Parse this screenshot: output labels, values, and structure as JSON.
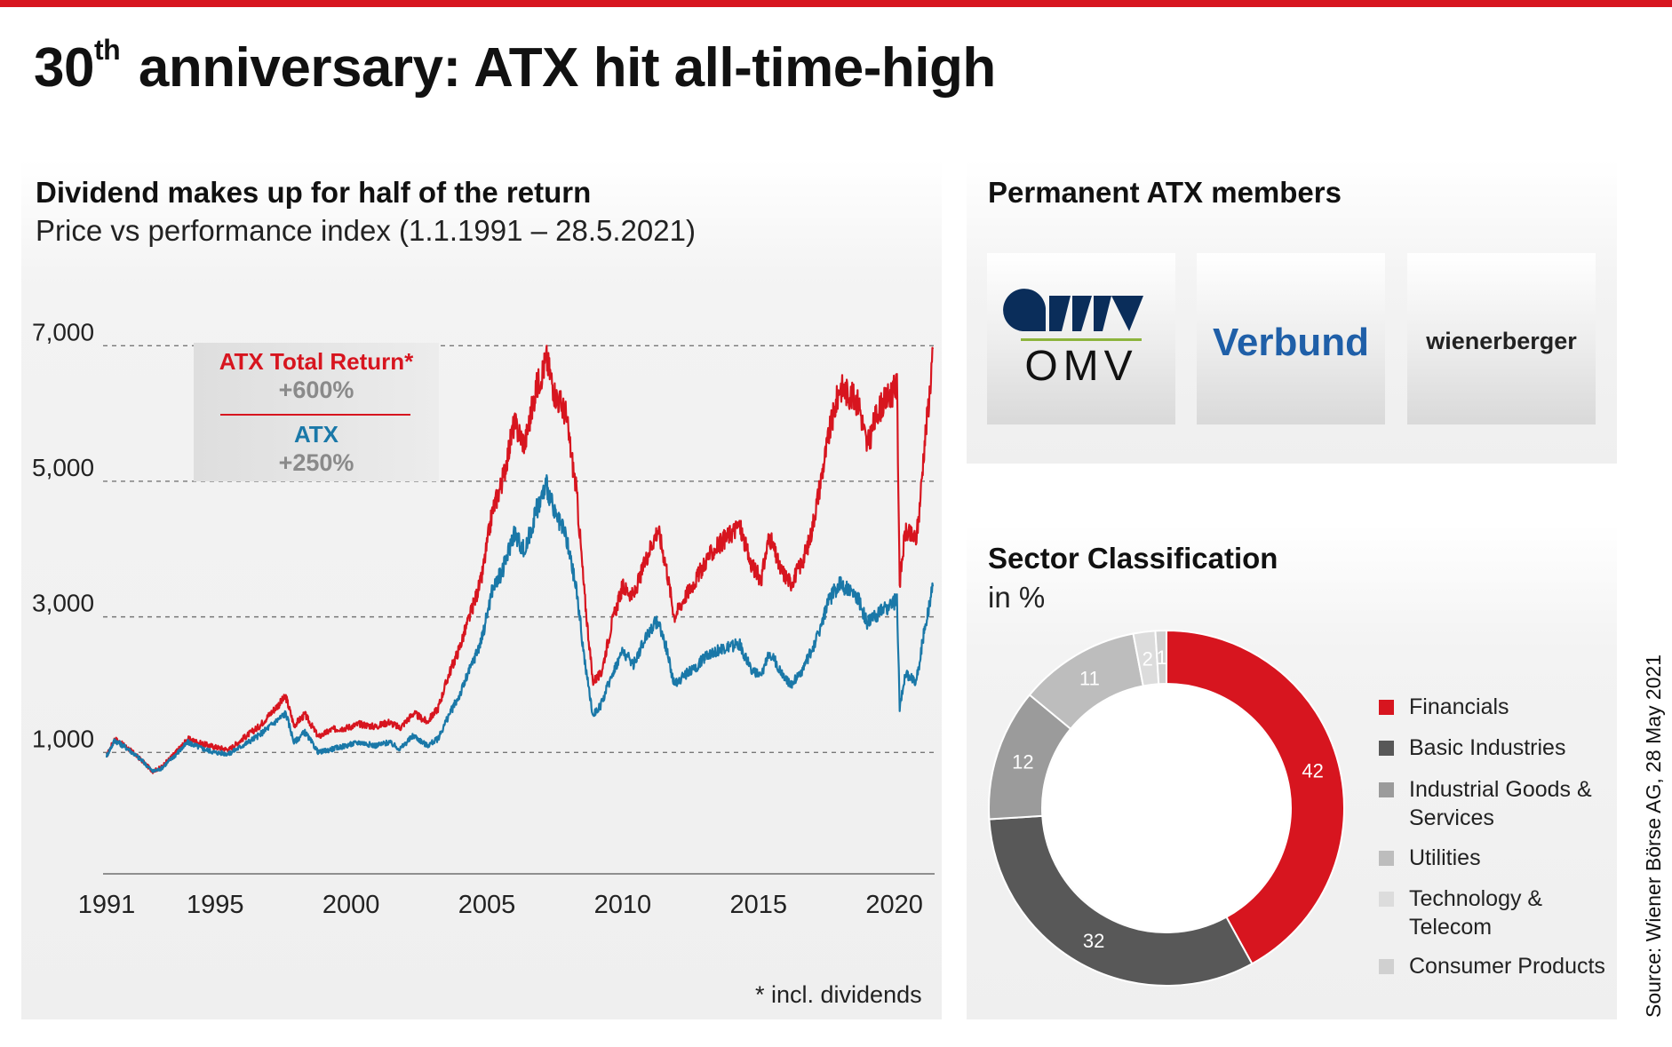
{
  "title": {
    "number": "30",
    "sup": "th",
    "rest": "anniversary: ATX hit all-time-high"
  },
  "line_panel": {
    "heading": "Dividend makes up for half of the return",
    "subheading": "Price vs performance index (1.1.1991 – 28.5.2021)",
    "footnote": "* incl. dividends",
    "annotation": {
      "a_label": "ATX Total Return*",
      "a_value": "+600%",
      "b_label": "ATX",
      "b_value": "+250%"
    }
  },
  "members_panel": {
    "heading": "Permanent ATX members",
    "logos": [
      {
        "name": "OMV",
        "icon": "omv-logo"
      },
      {
        "name": "Verbund",
        "icon": "verbund-logo"
      },
      {
        "name": "wienerberger",
        "icon": "wienerberger-logo"
      }
    ]
  },
  "sector_panel": {
    "heading": "Sector Classification",
    "subheading": "in %"
  },
  "source": "Source: Wiener Börse AG, 28 May 2021",
  "colors": {
    "tr": "#d7151f",
    "atx": "#1a78a8",
    "accent": "#d7151f"
  },
  "chart_data": [
    {
      "type": "line",
      "title": "Dividend makes up for half of the return",
      "subtitle": "Price vs performance index (1.1.1991 – 28.5.2021)",
      "xlim": [
        1991,
        2021.42
      ],
      "ylim": [
        -1000,
        7200
      ],
      "x_ticks": [
        1991,
        1995,
        2000,
        2005,
        2010,
        2015,
        2020
      ],
      "x_tick_labels": [
        "1991",
        "1995",
        "2000",
        "2005",
        "2010",
        "2015",
        "2020"
      ],
      "y_ticks": [
        1000,
        3000,
        5000,
        7000
      ],
      "y_tick_labels": [
        "1,000",
        "3,000",
        "5,000",
        "7,000"
      ],
      "grid": "horizontal dashed",
      "series": [
        {
          "name": "ATX Total Return*",
          "color": "#d7151f",
          "points": [
            [
              1991.0,
              950
            ],
            [
              1991.3,
              1200
            ],
            [
              1991.8,
              1060
            ],
            [
              1992.3,
              880
            ],
            [
              1992.7,
              720
            ],
            [
              1993.0,
              780
            ],
            [
              1993.5,
              980
            ],
            [
              1994.0,
              1200
            ],
            [
              1994.5,
              1130
            ],
            [
              1995.0,
              1080
            ],
            [
              1995.5,
              1040
            ],
            [
              1996.0,
              1200
            ],
            [
              1996.6,
              1380
            ],
            [
              1997.2,
              1650
            ],
            [
              1997.6,
              1820
            ],
            [
              1997.9,
              1400
            ],
            [
              1998.3,
              1560
            ],
            [
              1998.8,
              1230
            ],
            [
              1999.3,
              1340
            ],
            [
              1999.8,
              1360
            ],
            [
              2000.3,
              1420
            ],
            [
              2000.9,
              1380
            ],
            [
              2001.4,
              1450
            ],
            [
              2001.8,
              1360
            ],
            [
              2002.3,
              1580
            ],
            [
              2002.8,
              1450
            ],
            [
              2003.2,
              1650
            ],
            [
              2003.6,
              2150
            ],
            [
              2004.0,
              2550
            ],
            [
              2004.4,
              3050
            ],
            [
              2004.8,
              3550
            ],
            [
              2005.2,
              4550
            ],
            [
              2005.6,
              5050
            ],
            [
              2006.0,
              5850
            ],
            [
              2006.4,
              5550
            ],
            [
              2006.8,
              6350
            ],
            [
              2007.2,
              6800
            ],
            [
              2007.5,
              6300
            ],
            [
              2007.9,
              6000
            ],
            [
              2008.3,
              4850
            ],
            [
              2008.6,
              3300
            ],
            [
              2008.9,
              2050
            ],
            [
              2009.2,
              2150
            ],
            [
              2009.6,
              2900
            ],
            [
              2010.0,
              3450
            ],
            [
              2010.4,
              3300
            ],
            [
              2010.9,
              3900
            ],
            [
              2011.3,
              4300
            ],
            [
              2011.6,
              3750
            ],
            [
              2011.9,
              3000
            ],
            [
              2012.3,
              3300
            ],
            [
              2012.7,
              3550
            ],
            [
              2013.1,
              3850
            ],
            [
              2013.5,
              4050
            ],
            [
              2013.9,
              4200
            ],
            [
              2014.3,
              4350
            ],
            [
              2014.7,
              3800
            ],
            [
              2015.1,
              3550
            ],
            [
              2015.4,
              4200
            ],
            [
              2015.8,
              3700
            ],
            [
              2016.2,
              3500
            ],
            [
              2016.6,
              3800
            ],
            [
              2016.9,
              4150
            ],
            [
              2017.2,
              4800
            ],
            [
              2017.6,
              5700
            ],
            [
              2018.0,
              6400
            ],
            [
              2018.3,
              6300
            ],
            [
              2018.7,
              6150
            ],
            [
              2019.0,
              5500
            ],
            [
              2019.4,
              6050
            ],
            [
              2019.8,
              6250
            ],
            [
              2020.1,
              6400
            ],
            [
              2020.2,
              3500
            ],
            [
              2020.4,
              4250
            ],
            [
              2020.8,
              4150
            ],
            [
              2020.9,
              4450
            ],
            [
              2021.1,
              5500
            ],
            [
              2021.3,
              6300
            ],
            [
              2021.42,
              6950
            ]
          ]
        },
        {
          "name": "ATX",
          "color": "#1a78a8",
          "points": [
            [
              1991.0,
              950
            ],
            [
              1991.3,
              1180
            ],
            [
              1991.8,
              1050
            ],
            [
              1992.3,
              880
            ],
            [
              1992.7,
              720
            ],
            [
              1993.0,
              760
            ],
            [
              1993.5,
              950
            ],
            [
              1994.0,
              1150
            ],
            [
              1994.5,
              1060
            ],
            [
              1995.0,
              1000
            ],
            [
              1995.5,
              980
            ],
            [
              1996.0,
              1100
            ],
            [
              1996.6,
              1250
            ],
            [
              1997.2,
              1450
            ],
            [
              1997.6,
              1580
            ],
            [
              1997.9,
              1150
            ],
            [
              1998.3,
              1300
            ],
            [
              1998.8,
              1000
            ],
            [
              1999.3,
              1050
            ],
            [
              1999.8,
              1100
            ],
            [
              2000.3,
              1150
            ],
            [
              2000.9,
              1100
            ],
            [
              2001.4,
              1150
            ],
            [
              2001.8,
              1050
            ],
            [
              2002.3,
              1250
            ],
            [
              2002.8,
              1100
            ],
            [
              2003.2,
              1200
            ],
            [
              2003.6,
              1550
            ],
            [
              2004.0,
              1850
            ],
            [
              2004.4,
              2250
            ],
            [
              2004.8,
              2650
            ],
            [
              2005.2,
              3400
            ],
            [
              2005.6,
              3700
            ],
            [
              2006.0,
              4250
            ],
            [
              2006.4,
              3950
            ],
            [
              2006.8,
              4550
            ],
            [
              2007.2,
              4950
            ],
            [
              2007.5,
              4500
            ],
            [
              2007.9,
              4200
            ],
            [
              2008.3,
              3400
            ],
            [
              2008.6,
              2350
            ],
            [
              2008.9,
              1550
            ],
            [
              2009.2,
              1700
            ],
            [
              2009.6,
              2150
            ],
            [
              2010.0,
              2500
            ],
            [
              2010.4,
              2300
            ],
            [
              2010.9,
              2750
            ],
            [
              2011.3,
              2950
            ],
            [
              2011.6,
              2550
            ],
            [
              2011.9,
              2000
            ],
            [
              2012.3,
              2150
            ],
            [
              2012.7,
              2250
            ],
            [
              2013.1,
              2450
            ],
            [
              2013.5,
              2500
            ],
            [
              2013.9,
              2550
            ],
            [
              2014.3,
              2600
            ],
            [
              2014.7,
              2250
            ],
            [
              2015.1,
              2100
            ],
            [
              2015.4,
              2500
            ],
            [
              2015.8,
              2200
            ],
            [
              2016.2,
              2000
            ],
            [
              2016.6,
              2200
            ],
            [
              2016.9,
              2450
            ],
            [
              2017.2,
              2750
            ],
            [
              2017.6,
              3250
            ],
            [
              2018.0,
              3500
            ],
            [
              2018.3,
              3400
            ],
            [
              2018.7,
              3250
            ],
            [
              2019.0,
              2900
            ],
            [
              2019.4,
              3050
            ],
            [
              2019.8,
              3150
            ],
            [
              2020.1,
              3250
            ],
            [
              2020.2,
              1650
            ],
            [
              2020.4,
              2150
            ],
            [
              2020.8,
              2050
            ],
            [
              2020.9,
              2250
            ],
            [
              2021.1,
              2800
            ],
            [
              2021.3,
              3200
            ],
            [
              2021.42,
              3450
            ]
          ]
        }
      ]
    },
    {
      "type": "pie",
      "title": "Sector Classification",
      "subtitle": "in %",
      "donut": true,
      "slices": [
        {
          "label": "Financials",
          "value": 42,
          "color": "#d7151f"
        },
        {
          "label": "Basic Industries",
          "value": 32,
          "color": "#585858"
        },
        {
          "label": "Industrial Goods & Services",
          "label_lines": [
            "Industrial Goods &",
            "Services"
          ],
          "value": 12,
          "color": "#9b9b9b"
        },
        {
          "label": "Utilities",
          "value": 11,
          "color": "#bdbdbd"
        },
        {
          "label": "Technology & Telecom",
          "label_lines": [
            "Technology &",
            "Telecom"
          ],
          "value": 2,
          "color": "#dcdcdc"
        },
        {
          "label": "Consumer Products",
          "value": 1,
          "color": "#d0d0d0"
        }
      ]
    }
  ]
}
